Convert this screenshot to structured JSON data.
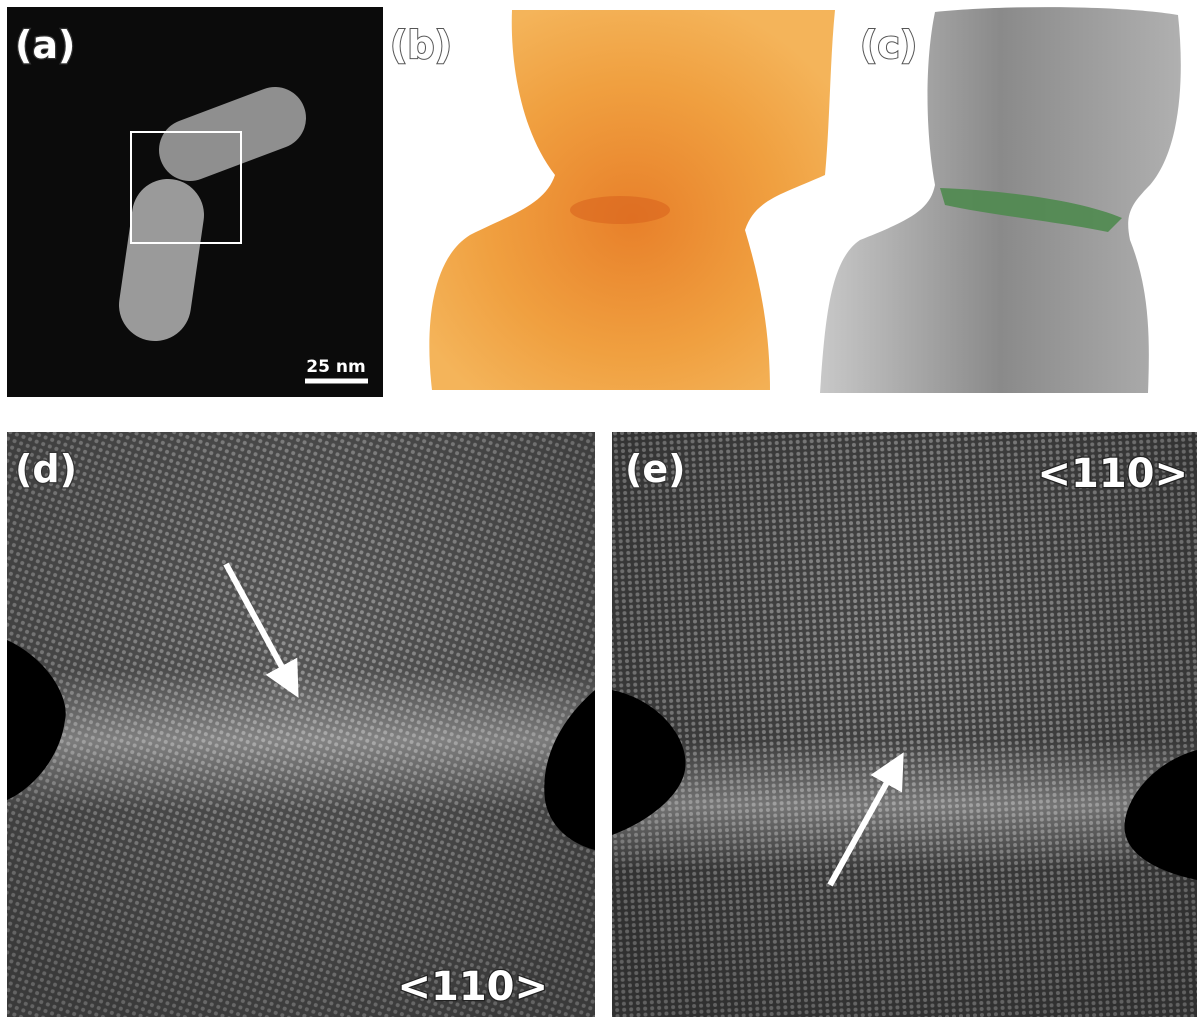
{
  "panels": [
    {
      "label": "(a)",
      "scale_bar": "25 nm"
    },
    {
      "label": "(b)"
    },
    {
      "label": "(c)"
    },
    {
      "label": "(d)",
      "direction": "<110>"
    },
    {
      "label": "(e)",
      "direction": "<110>"
    }
  ]
}
